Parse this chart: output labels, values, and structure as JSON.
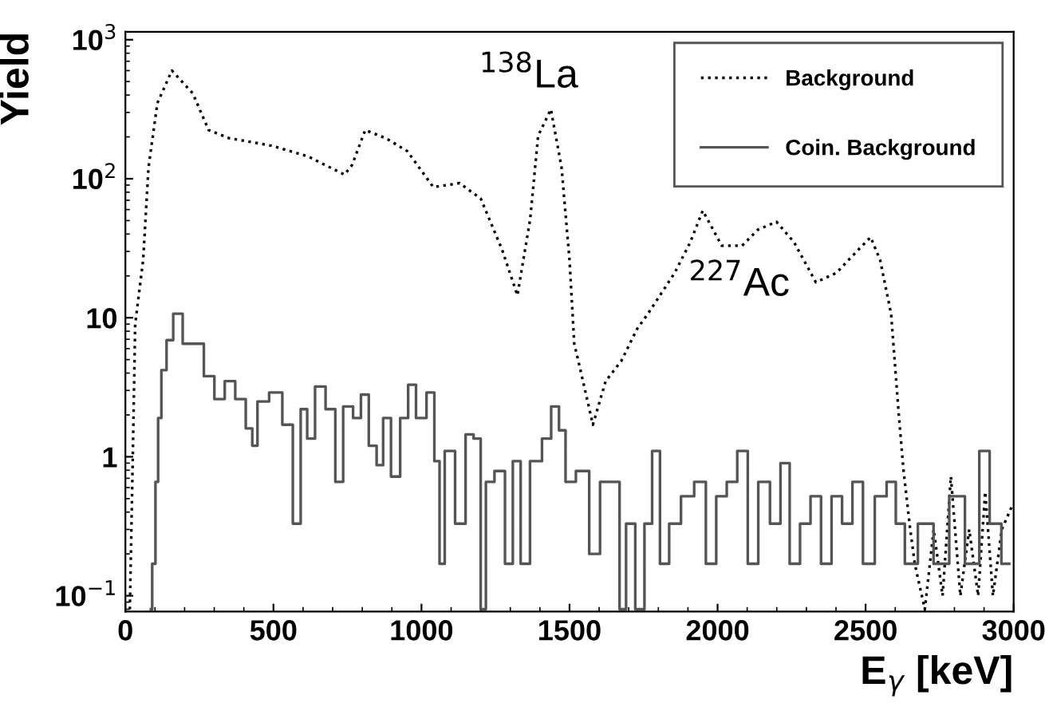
{
  "chart_data": {
    "type": "line",
    "xlabel": "E$_{γ}$ [keV]",
    "ylabel": "Yield",
    "log": "y",
    "grid": false,
    "legend": "top right",
    "xlim": [
      0,
      3000
    ],
    "xticks": [
      0,
      500,
      1000,
      1500,
      2000,
      2500,
      3000
    ],
    "ylim": [
      0.077,
      1140
    ],
    "yticks": [
      {
        "value": 0.1,
        "label": "10$^{−1}$"
      },
      1,
      10,
      {
        "value": 100,
        "label": "10$^{2}$"
      },
      {
        "value": 1000,
        "label": "10$^{3}$"
      }
    ],
    "annotations": [
      {
        "text": "$^{138}$La",
        "x": 1437,
        "y": 316
      },
      {
        "text": "$^{227}$Ac",
        "x": 2260,
        "y": 35
      }
    ],
    "series": [
      {
        "name": "Background",
        "line_style": "dotted",
        "color": "#000000",
        "x": [
          15,
          25,
          33,
          60,
          78,
          108,
          157,
          228,
          281,
          350,
          493,
          616,
          740,
          766,
          810,
          881,
          952,
          1040,
          1129,
          1200,
          1272,
          1324,
          1367,
          1394,
          1437,
          1473,
          1500,
          1516,
          1537,
          1579,
          1622,
          1675,
          1728,
          1765,
          1855,
          1908,
          1950,
          2014,
          2083,
          2136,
          2199,
          2258,
          2332,
          2401,
          2470,
          2517,
          2549,
          2586,
          2613,
          2628,
          2650,
          2666,
          2700,
          2730,
          2760,
          2788,
          2820,
          2850,
          2880,
          2904,
          2930,
          2960,
          2994
        ],
        "values": [
          0.08,
          1,
          9,
          26,
          120,
          350,
          600,
          410,
          224,
          196,
          173,
          145,
          107,
          126,
          224,
          195,
          158,
          87,
          93,
          72,
          31,
          14.5,
          51,
          204,
          316,
          121,
          26,
          6.5,
          4.2,
          1.7,
          3.5,
          4.9,
          8.3,
          10.7,
          21,
          35,
          59,
          33,
          33,
          43,
          49,
          35,
          18,
          21,
          30,
          38,
          26,
          10.7,
          1.9,
          0.8,
          0.31,
          0.17,
          0.08,
          0.3,
          0.1,
          0.72,
          0.1,
          0.3,
          0.1,
          0.56,
          0.1,
          0.3,
          0.44
        ]
      },
      {
        "name": "Coin. Background",
        "type": "step",
        "line_style": "solid",
        "color": "#555555",
        "x": [
          86,
          95,
          108,
          113,
          130,
          148,
          175,
          212,
          247,
          283,
          318,
          353,
          389,
          424,
          433,
          459,
          512,
          548,
          583,
          601,
          627,
          654,
          698,
          720,
          751,
          787,
          804,
          840,
          857,
          884,
          910,
          946,
          964,
          999,
          1035,
          1052,
          1070,
          1087,
          1140,
          1158,
          1194,
          1206,
          1229,
          1264,
          1300,
          1317,
          1353,
          1380,
          1394,
          1420,
          1456,
          1473,
          1500,
          1543,
          1590,
          1616,
          1660,
          1678,
          1704,
          1740,
          1766,
          1792,
          1819,
          1854,
          1899,
          1943,
          1978,
          2013,
          2049,
          2084,
          2120,
          2155,
          2199,
          2226,
          2261,
          2296,
          2332,
          2367,
          2403,
          2438,
          2473,
          2509,
          2553,
          2589,
          2615,
          2650,
          2703,
          2756,
          2809,
          2862,
          2906,
          2932,
          2985
        ],
        "values": [
          0.08,
          0.17,
          0.66,
          1.9,
          4.2,
          6.9,
          10.7,
          6.5,
          6.5,
          3.8,
          2.6,
          3.5,
          2.6,
          1.6,
          1.2,
          2.5,
          2.9,
          1.7,
          0.33,
          2.2,
          1.35,
          3.2,
          2.2,
          0.66,
          2.3,
          1.9,
          2.8,
          1.2,
          0.87,
          1.9,
          0.72,
          1.9,
          3.3,
          1.9,
          2.9,
          0.93,
          0.17,
          1.1,
          0.33,
          1.45,
          1.35,
          0.08,
          0.66,
          0.79,
          0.17,
          0.93,
          0.17,
          0.93,
          0.93,
          1.35,
          2.3,
          1.55,
          0.66,
          0.79,
          0.2,
          0.66,
          0.66,
          0.08,
          0.33,
          0.08,
          0.33,
          1.1,
          0.17,
          0.33,
          0.52,
          0.66,
          0.17,
          0.52,
          0.66,
          1.1,
          0.17,
          0.66,
          0.33,
          0.9,
          0.17,
          0.33,
          0.52,
          0.17,
          0.52,
          0.33,
          0.66,
          0.17,
          0.52,
          0.66,
          0.33,
          0.17,
          0.33,
          0.17,
          0.52,
          0.17,
          1.1,
          0.33,
          0.17
        ]
      }
    ]
  }
}
